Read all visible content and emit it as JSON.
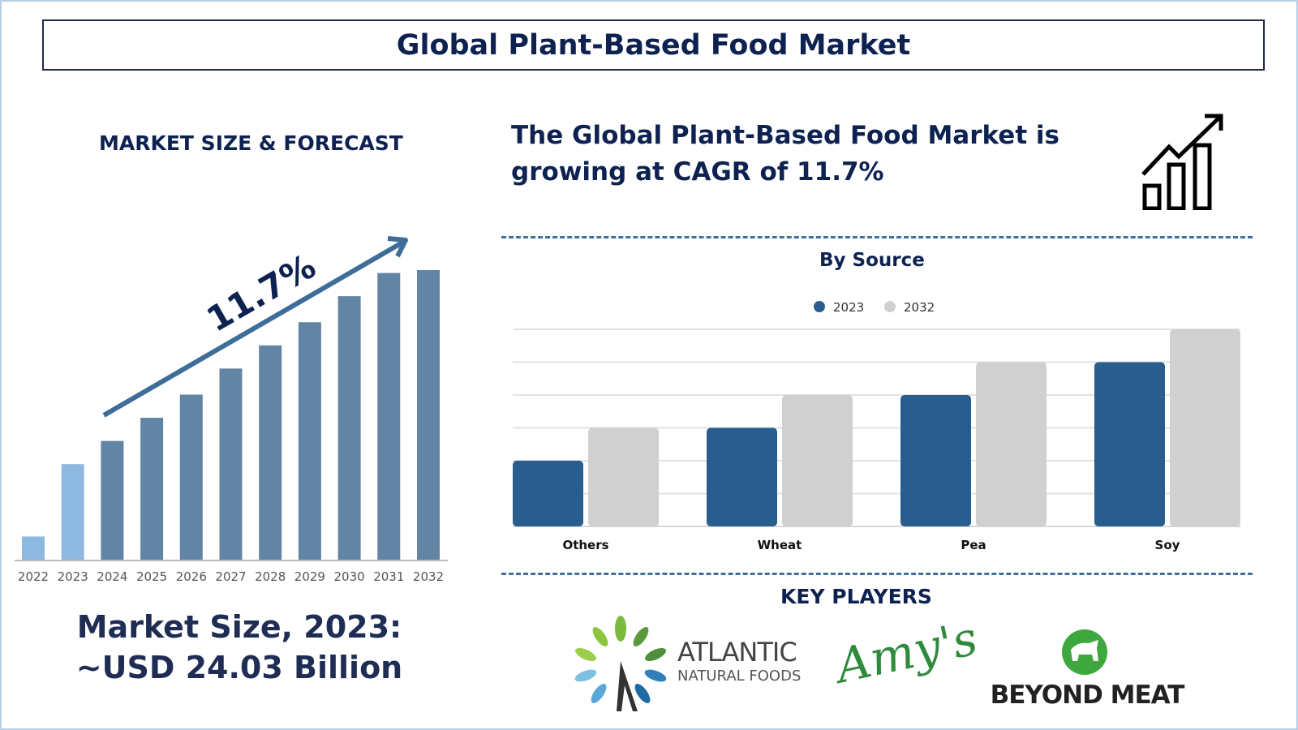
{
  "title": "Global Plant-Based Food Market",
  "left": {
    "heading": "MARKET SIZE & FORECAST",
    "cagr_label": "11.7%",
    "market_size_line1": "Market Size, 2023:",
    "market_size_line2": "~USD 24.03 Billion"
  },
  "right": {
    "cagr_text": "The Global Plant-Based Food Market is growing at CAGR of 11.7%",
    "icon": "growth-chart-icon",
    "key_players_heading": "KEY PLAYERS",
    "key_players": [
      "ATLANTIC",
      "NATURAL FOODS",
      "Amy's",
      "BEYOND MEAT"
    ]
  },
  "colors": {
    "navy": "#0e2251",
    "historic": "#8db9e0",
    "forecast": "#6284a5",
    "series_2023": "#285d8e",
    "series_2032": "#d0d0d0"
  },
  "chart_data": [
    {
      "type": "bar",
      "title": "",
      "categories": [
        "2022",
        "2023",
        "2024",
        "2025",
        "2026",
        "2027",
        "2028",
        "2029",
        "2030",
        "2031",
        "2032"
      ],
      "values": [
        8,
        33,
        41,
        49,
        57,
        66,
        74,
        82,
        91,
        99,
        100
      ],
      "highlight": [
        "historic",
        "historic",
        "forecast",
        "forecast",
        "forecast",
        "forecast",
        "forecast",
        "forecast",
        "forecast",
        "forecast",
        "forecast"
      ],
      "annotation": "11.7%",
      "grid": false
    },
    {
      "type": "bar",
      "title": "By Source",
      "categories": [
        "Others",
        "Wheat",
        "Pea",
        "Soy"
      ],
      "series": [
        {
          "name": "2023",
          "values": [
            2,
            3,
            4,
            5
          ]
        },
        {
          "name": "2032",
          "values": [
            3,
            4,
            5,
            6
          ]
        }
      ],
      "ylim": [
        0,
        6
      ],
      "grid": true,
      "legend": "top-center"
    }
  ]
}
